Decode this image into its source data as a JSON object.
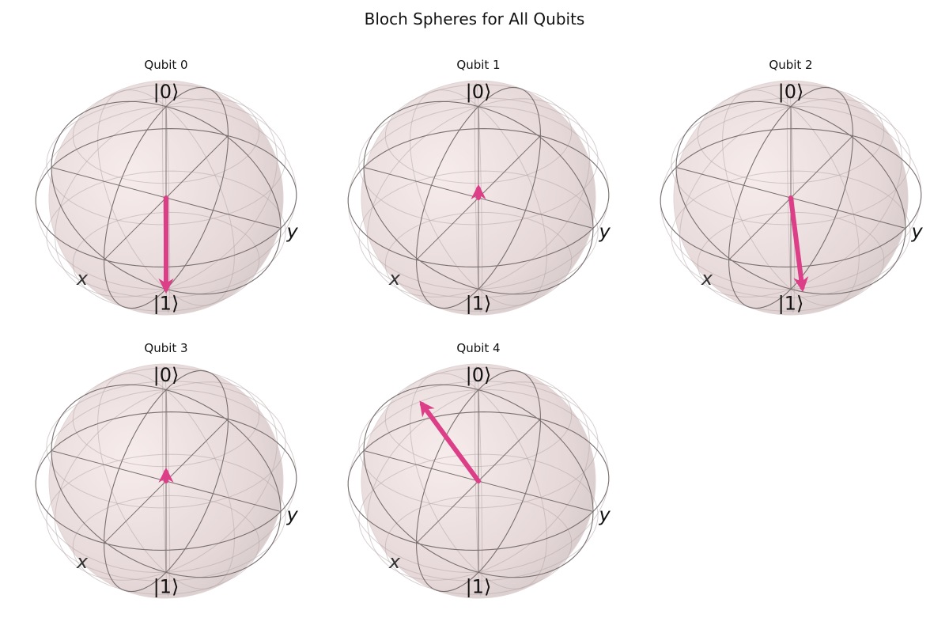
{
  "figure_title": "Bloch Spheres for All Qubits",
  "colors": {
    "vector": "#dc3f87",
    "sphere_fill": "#ead8d8",
    "wire": "#7a7070",
    "grid": "#b8aaaa",
    "label": "#333333"
  },
  "chart_data": [
    {
      "type": "bloch",
      "title": "Qubit 0",
      "zero_label": "|0⟩",
      "one_label": "|1⟩",
      "x_label": "x",
      "y_label": "y",
      "vector": {
        "x": 0.0,
        "y": 0.0,
        "z": -1.0
      }
    },
    {
      "type": "bloch",
      "title": "Qubit 1",
      "zero_label": "|0⟩",
      "one_label": "|1⟩",
      "x_label": "x",
      "y_label": "y",
      "vector": {
        "x": 0.0,
        "y": 0.0,
        "z": 0.1
      }
    },
    {
      "type": "bloch",
      "title": "Qubit 2",
      "zero_label": "|0⟩",
      "one_label": "|1⟩",
      "x_label": "x",
      "y_label": "y",
      "vector": {
        "x": 0.0,
        "y": 0.1,
        "z": -0.95
      }
    },
    {
      "type": "bloch",
      "title": "Qubit 3",
      "zero_label": "|0⟩",
      "one_label": "|1⟩",
      "x_label": "x",
      "y_label": "y",
      "vector": {
        "x": 0.0,
        "y": 0.0,
        "z": 0.1
      }
    },
    {
      "type": "bloch",
      "title": "Qubit 4",
      "zero_label": "|0⟩",
      "one_label": "|1⟩",
      "x_label": "x",
      "y_label": "y",
      "vector": {
        "x": 0.26,
        "y": -0.35,
        "z": 0.9
      }
    }
  ]
}
